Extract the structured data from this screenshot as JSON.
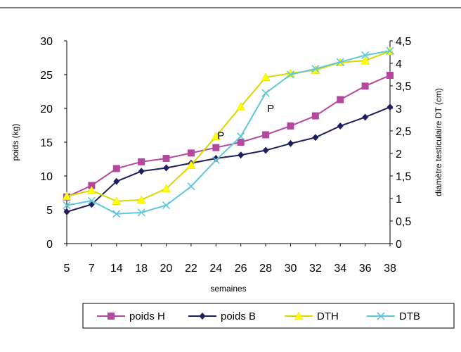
{
  "chart_data": {
    "type": "line",
    "categories": [
      "5",
      "7",
      "14",
      "18",
      "20",
      "22",
      "24",
      "26",
      "28",
      "30",
      "32",
      "34",
      "36",
      "38"
    ],
    "xlabel": "semaines",
    "ylabel_left": "poids (kg)",
    "ylabel_right": "diamètre testiculaire DT (cm)",
    "y_left": {
      "range": [
        0,
        30
      ],
      "ticks": [
        "0",
        "5",
        "10",
        "15",
        "20",
        "25",
        "30"
      ]
    },
    "y_right": {
      "range": [
        0,
        4.5
      ],
      "ticks": [
        "0",
        "0,5",
        "1",
        "1,5",
        "2",
        "2,5",
        "3",
        "3,5",
        "4",
        "4,5"
      ]
    },
    "grid": false,
    "legend_position": "bottom",
    "series": [
      {
        "name": "poids H",
        "axis": "left",
        "color": "#b5489e",
        "marker": "square",
        "values": [
          6.9,
          8.6,
          11.1,
          12.1,
          12.6,
          13.4,
          14.2,
          15.0,
          16.1,
          17.4,
          18.9,
          21.3,
          23.3,
          24.9
        ]
      },
      {
        "name": "poids B",
        "axis": "left",
        "color": "#1f1f5e",
        "marker": "diamond",
        "values": [
          4.7,
          5.8,
          9.2,
          10.7,
          11.2,
          11.9,
          12.6,
          13.1,
          13.8,
          14.8,
          15.7,
          17.4,
          18.7,
          20.2
        ]
      },
      {
        "name": "DTH",
        "axis": "right",
        "color": "#ffff00",
        "stroke": "#d8d800",
        "marker": "triangle",
        "values": [
          1.05,
          1.18,
          0.94,
          0.97,
          1.22,
          1.74,
          2.38,
          3.04,
          3.69,
          3.78,
          3.85,
          4.02,
          4.06,
          4.27
        ]
      },
      {
        "name": "DTB",
        "axis": "right",
        "color": "#5fc8d8",
        "marker": "x",
        "values": [
          0.85,
          0.95,
          0.66,
          0.69,
          0.85,
          1.27,
          1.85,
          2.38,
          3.34,
          3.75,
          3.88,
          4.03,
          4.18,
          4.28
        ]
      }
    ],
    "annotations": [
      {
        "text": "P",
        "x": "24",
        "y_right": 2.4
      },
      {
        "text": "P",
        "x": "28",
        "y_right": 3.0
      }
    ]
  }
}
